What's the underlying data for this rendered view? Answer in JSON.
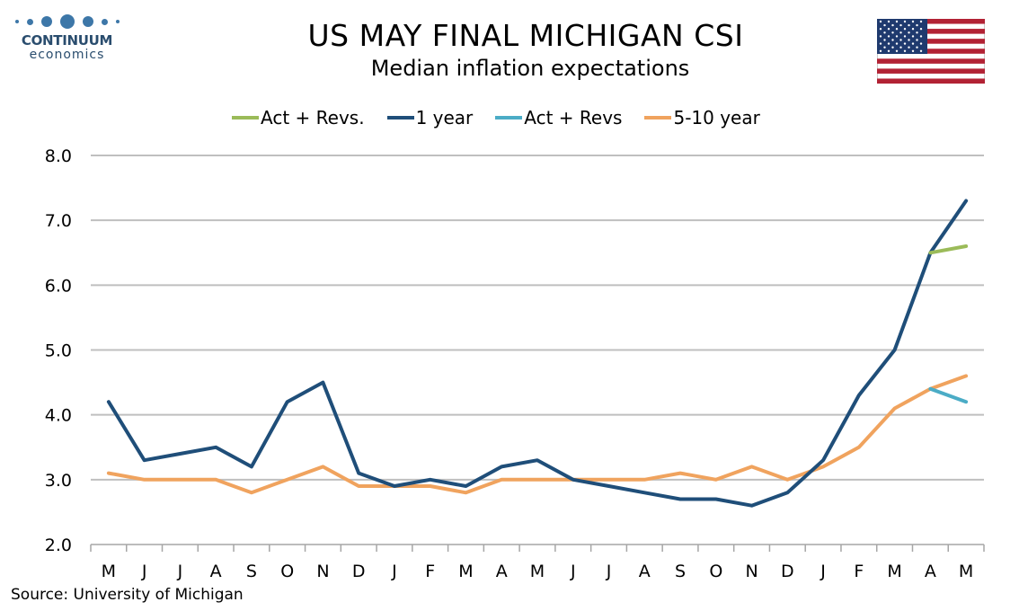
{
  "logo": {
    "name": "CONTINUUM",
    "sub": "economics"
  },
  "title": "US MAY FINAL MICHIGAN CSI",
  "subtitle": "Median inflation expectations",
  "source": "Source: University of Michigan",
  "flag_icon": "us-flag-icon",
  "colors": {
    "gridline": "#bfbfbf",
    "axis": "#a6a6a6",
    "one_year": "#1f4e79",
    "five_ten_year": "#f0a35e",
    "act_revs_green": "#9bbb59",
    "act_revs_blue": "#4bacc6"
  },
  "chart_data": {
    "type": "line",
    "categories": [
      "M",
      "J",
      "J",
      "A",
      "S",
      "O",
      "N",
      "D",
      "J",
      "F",
      "M",
      "A",
      "M",
      "J",
      "J",
      "A",
      "S",
      "O",
      "N",
      "D",
      "J",
      "F",
      "M",
      "A",
      "M"
    ],
    "ylim": [
      2.0,
      8.0
    ],
    "yticks": [
      "2.0",
      "3.0",
      "4.0",
      "5.0",
      "6.0",
      "7.0",
      "8.0"
    ],
    "grid": true,
    "legend_position": "top",
    "series": [
      {
        "name": "Act + Revs.",
        "color": "#9bbb59",
        "values": [
          null,
          null,
          null,
          null,
          null,
          null,
          null,
          null,
          null,
          null,
          null,
          null,
          null,
          null,
          null,
          null,
          null,
          null,
          null,
          null,
          null,
          null,
          null,
          6.5,
          6.6
        ]
      },
      {
        "name": "1 year",
        "color": "#1f4e79",
        "values": [
          4.2,
          3.3,
          3.4,
          3.5,
          3.2,
          4.2,
          4.5,
          3.1,
          2.9,
          3.0,
          2.9,
          3.2,
          3.3,
          3.0,
          2.9,
          2.8,
          2.7,
          2.7,
          2.6,
          2.8,
          3.3,
          4.3,
          5.0,
          6.5,
          7.3
        ]
      },
      {
        "name": "Act + Revs",
        "color": "#4bacc6",
        "values": [
          null,
          null,
          null,
          null,
          null,
          null,
          null,
          null,
          null,
          null,
          null,
          null,
          null,
          null,
          null,
          null,
          null,
          null,
          null,
          null,
          null,
          null,
          null,
          4.4,
          4.2
        ]
      },
      {
        "name": "5-10 year",
        "color": "#f0a35e",
        "values": [
          3.1,
          3.0,
          3.0,
          3.0,
          2.8,
          3.0,
          3.2,
          2.9,
          2.9,
          2.9,
          2.8,
          3.0,
          3.0,
          3.0,
          3.0,
          3.0,
          3.1,
          3.0,
          3.2,
          3.0,
          3.2,
          3.5,
          4.1,
          4.4,
          4.6
        ]
      }
    ]
  }
}
